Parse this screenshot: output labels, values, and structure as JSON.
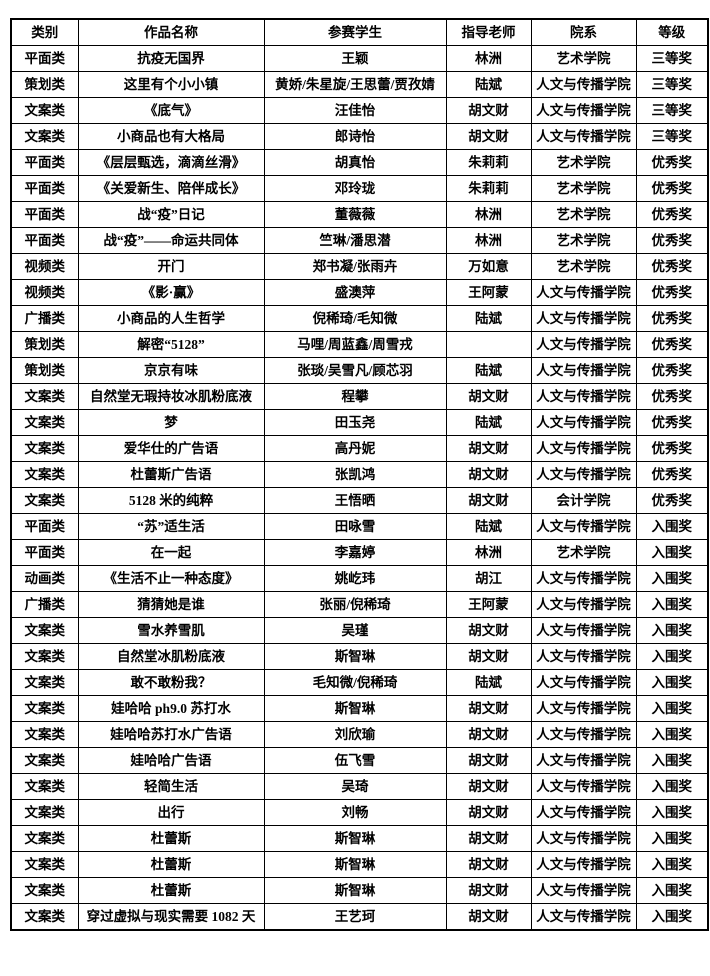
{
  "colors": {
    "border": "#000000",
    "text": "#000000",
    "background": "#ffffff"
  },
  "table": {
    "headers": [
      "类别",
      "作品名称",
      "参赛学生",
      "指导老师",
      "院系",
      "等级"
    ],
    "rows": [
      [
        "平面类",
        "抗疫无国界",
        "王颖",
        "林洲",
        "艺术学院",
        "三等奖"
      ],
      [
        "策划类",
        "这里有个小小镇",
        "黄娇/朱星旋/王思蕾/贾孜婧",
        "陆斌",
        "人文与传播学院",
        "三等奖"
      ],
      [
        "文案类",
        "《底气》",
        "汪佳怡",
        "胡文财",
        "人文与传播学院",
        "三等奖"
      ],
      [
        "文案类",
        "小商品也有大格局",
        "郎诗怡",
        "胡文财",
        "人文与传播学院",
        "三等奖"
      ],
      [
        "平面类",
        "《层层甄选，滴滴丝滑》",
        "胡真怡",
        "朱莉莉",
        "艺术学院",
        "优秀奖"
      ],
      [
        "平面类",
        "《关爱新生、陪伴成长》",
        "邓玲珑",
        "朱莉莉",
        "艺术学院",
        "优秀奖"
      ],
      [
        "平面类",
        "战“疫”日记",
        "董薇薇",
        "林洲",
        "艺术学院",
        "优秀奖"
      ],
      [
        "平面类",
        "战“疫”——命运共同体",
        "竺琳/潘思潜",
        "林洲",
        "艺术学院",
        "优秀奖"
      ],
      [
        "视频类",
        "开门",
        "郑书凝/张雨卉",
        "万如意",
        "艺术学院",
        "优秀奖"
      ],
      [
        "视频类",
        "《影·赢》",
        "盛澳萍",
        "王阿蒙",
        "人文与传播学院",
        "优秀奖"
      ],
      [
        "广播类",
        "小商品的人生哲学",
        "倪稀琦/毛知微",
        "陆斌",
        "人文与传播学院",
        "优秀奖"
      ],
      [
        "策划类",
        "解密“5128”",
        "马哩/周蓝鑫/周雪戎",
        "",
        "人文与传播学院",
        "优秀奖"
      ],
      [
        "策划类",
        "京京有味",
        "张琰/吴雪凡/顾芯羽",
        "陆斌",
        "人文与传播学院",
        "优秀奖"
      ],
      [
        "文案类",
        "自然堂无瑕持妆冰肌粉底液",
        "程攀",
        "胡文财",
        "人文与传播学院",
        "优秀奖"
      ],
      [
        "文案类",
        "梦",
        "田玉尧",
        "陆斌",
        "人文与传播学院",
        "优秀奖"
      ],
      [
        "文案类",
        "爱华仕的广告语",
        "高丹妮",
        "胡文财",
        "人文与传播学院",
        "优秀奖"
      ],
      [
        "文案类",
        "杜蕾斯广告语",
        "张凯鸿",
        "胡文财",
        "人文与传播学院",
        "优秀奖"
      ],
      [
        "文案类",
        "5128 米的纯粹",
        "王悟晒",
        "胡文财",
        "会计学院",
        "优秀奖"
      ],
      [
        "平面类",
        "“苏”适生活",
        "田咏雪",
        "陆斌",
        "人文与传播学院",
        "入围奖"
      ],
      [
        "平面类",
        "在一起",
        "李嘉婷",
        "林洲",
        "艺术学院",
        "入围奖"
      ],
      [
        "动画类",
        "《生活不止一种态度》",
        "姚屹玮",
        "胡江",
        "人文与传播学院",
        "入围奖"
      ],
      [
        "广播类",
        "猜猜她是谁",
        "张丽/倪稀琦",
        "王阿蒙",
        "人文与传播学院",
        "入围奖"
      ],
      [
        "文案类",
        "雪水养雪肌",
        "吴瑾",
        "胡文财",
        "人文与传播学院",
        "入围奖"
      ],
      [
        "文案类",
        "自然堂冰肌粉底液",
        "斯智琳",
        "胡文财",
        "人文与传播学院",
        "入围奖"
      ],
      [
        "文案类",
        "敢不敢粉我？",
        "毛知微/倪稀琦",
        "陆斌",
        "人文与传播学院",
        "入围奖"
      ],
      [
        "文案类",
        "娃哈哈 ph9.0 苏打水",
        "斯智琳",
        "胡文财",
        "人文与传播学院",
        "入围奖"
      ],
      [
        "文案类",
        "娃哈哈苏打水广告语",
        "刘欣瑜",
        "胡文财",
        "人文与传播学院",
        "入围奖"
      ],
      [
        "文案类",
        "娃哈哈广告语",
        "伍飞雪",
        "胡文财",
        "人文与传播学院",
        "入围奖"
      ],
      [
        "文案类",
        "轻简生活",
        "吴琦",
        "胡文财",
        "人文与传播学院",
        "入围奖"
      ],
      [
        "文案类",
        "出行",
        "刘畅",
        "胡文财",
        "人文与传播学院",
        "入围奖"
      ],
      [
        "文案类",
        "杜蕾斯",
        "斯智琳",
        "胡文财",
        "人文与传播学院",
        "入围奖"
      ],
      [
        "文案类",
        "杜蕾斯",
        "斯智琳",
        "胡文财",
        "人文与传播学院",
        "入围奖"
      ],
      [
        "文案类",
        "杜蕾斯",
        "斯智琳",
        "胡文财",
        "人文与传播学院",
        "入围奖"
      ],
      [
        "文案类",
        "穿过虚拟与现实需要 1082 天",
        "王艺珂",
        "胡文财",
        "人文与传播学院",
        "入围奖"
      ]
    ]
  }
}
